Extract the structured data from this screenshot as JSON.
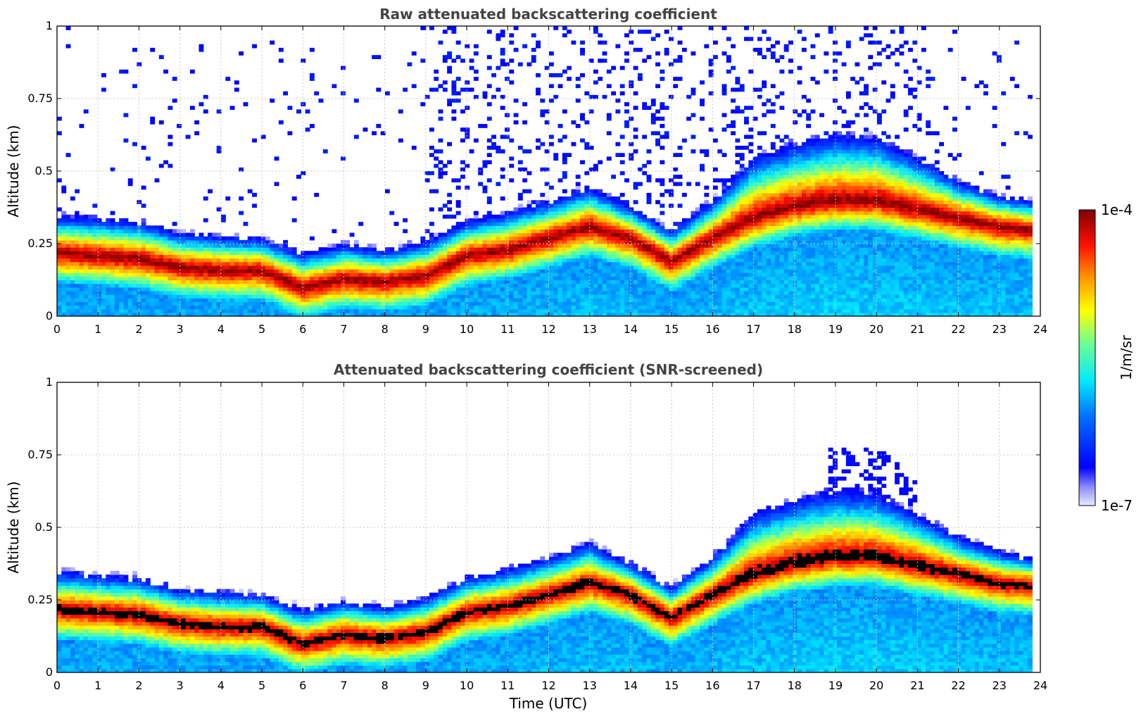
{
  "chart_data": [
    {
      "type": "heatmap",
      "title": "Raw attenuated backscattering coefficient",
      "xlabel": "",
      "ylabel": "Altitude (km)",
      "xlim": [
        0,
        24
      ],
      "ylim": [
        0,
        1
      ],
      "xticks": [
        "0",
        "1",
        "2",
        "3",
        "4",
        "5",
        "6",
        "7",
        "8",
        "9",
        "10",
        "11",
        "12",
        "13",
        "14",
        "15",
        "16",
        "17",
        "18",
        "19",
        "20",
        "21",
        "22",
        "23",
        "24"
      ],
      "yticks": [
        "0",
        "0.25",
        "0.5",
        "0.75",
        "1"
      ],
      "grid": true,
      "layer": {
        "time": [
          0,
          1,
          2,
          3,
          4,
          5,
          6,
          7,
          8,
          9,
          10,
          11,
          12,
          13,
          14,
          15,
          16,
          17,
          18,
          19,
          20,
          21,
          22,
          23,
          23.8
        ],
        "peak_altitude_km": [
          0.22,
          0.21,
          0.2,
          0.17,
          0.16,
          0.16,
          0.1,
          0.13,
          0.12,
          0.14,
          0.21,
          0.23,
          0.27,
          0.31,
          0.27,
          0.19,
          0.27,
          0.34,
          0.38,
          0.4,
          0.4,
          0.37,
          0.34,
          0.31,
          0.3
        ],
        "top_altitude_km": [
          0.35,
          0.34,
          0.33,
          0.29,
          0.28,
          0.27,
          0.22,
          0.25,
          0.23,
          0.26,
          0.33,
          0.36,
          0.4,
          0.45,
          0.38,
          0.3,
          0.4,
          0.55,
          0.6,
          0.63,
          0.62,
          0.55,
          0.47,
          0.42,
          0.4
        ]
      },
      "notes": "Noisy sparse signal above layer, densest near 19-21 UTC"
    },
    {
      "type": "heatmap",
      "title": "Attenuated backscattering coefficient (SNR-screened)",
      "xlabel": "Time (UTC)",
      "ylabel": "Altitude (km)",
      "xlim": [
        0,
        24
      ],
      "ylim": [
        0,
        1
      ],
      "xticks": [
        "0",
        "1",
        "2",
        "3",
        "4",
        "5",
        "6",
        "7",
        "8",
        "9",
        "10",
        "11",
        "12",
        "13",
        "14",
        "15",
        "16",
        "17",
        "18",
        "19",
        "20",
        "21",
        "22",
        "23",
        "24"
      ],
      "yticks": [
        "0",
        "0.25",
        "0.5",
        "0.75",
        "1"
      ],
      "grid": true,
      "saturated_color": "#000000"
    }
  ],
  "colorbar": {
    "label": "1/m/sr",
    "max_label": "1e-4",
    "min_label": "1e-7",
    "scale": "log",
    "range": [
      1e-07,
      0.0001
    ],
    "colormap": "jet"
  },
  "colors": {
    "title": "#444444",
    "grid": "#c8c8c8",
    "axis": "#000000"
  }
}
